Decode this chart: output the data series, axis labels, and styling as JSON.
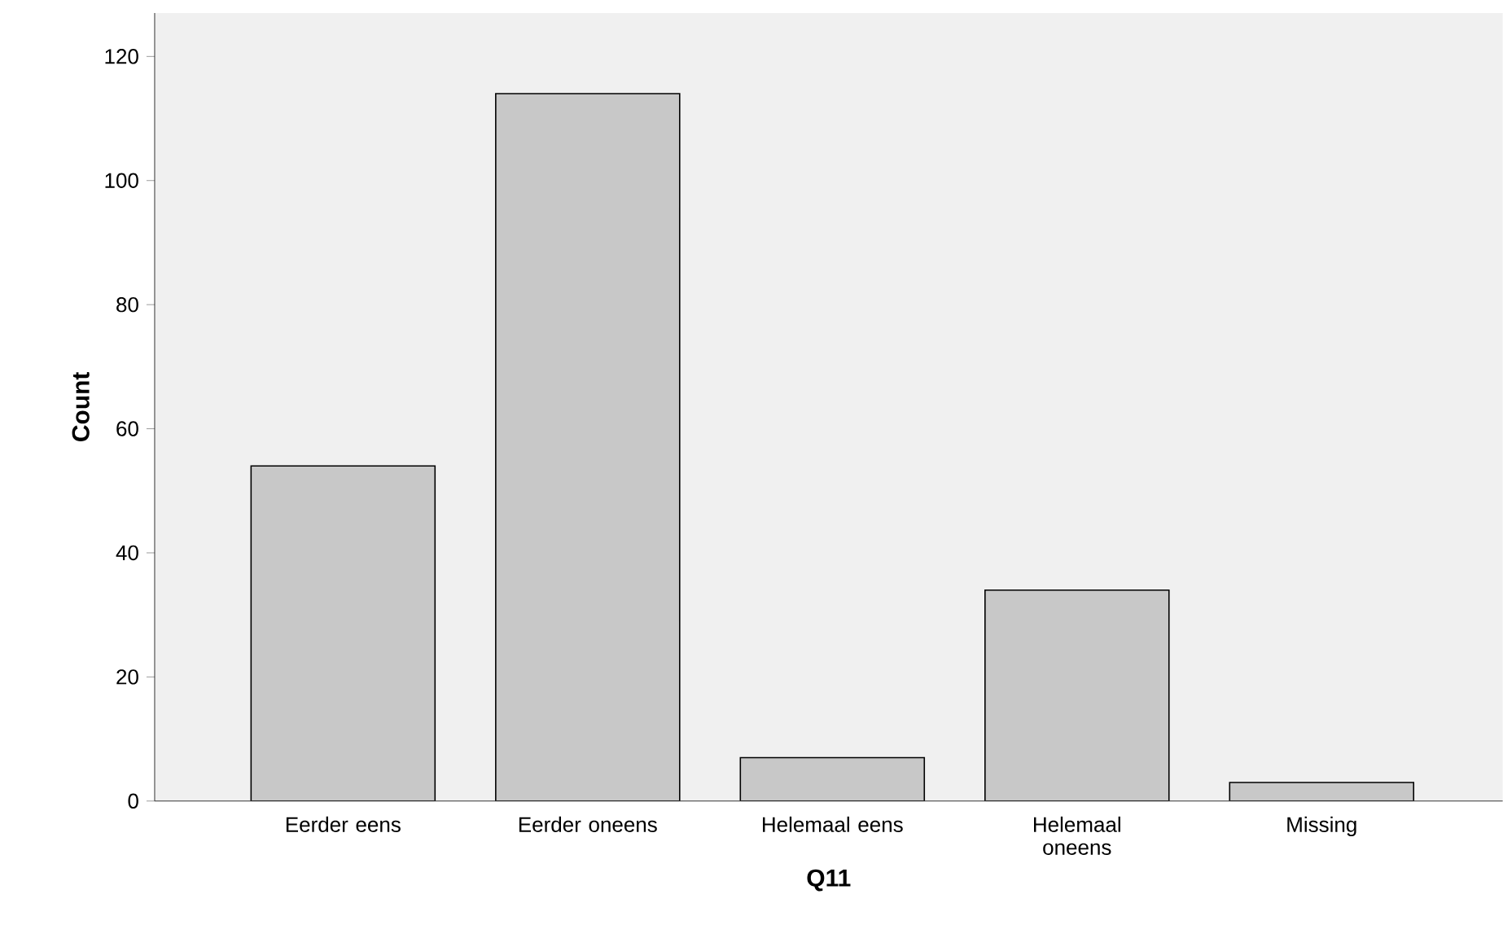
{
  "chart_data": {
    "type": "bar",
    "xlabel": "Q11",
    "ylabel": "Count",
    "categories": [
      "Eerder eens",
      "Eerder oneens",
      "Helemaal eens",
      "Helemaal oneens",
      "Missing"
    ],
    "values": [
      54,
      114,
      7,
      34,
      3
    ],
    "color": "#c8c8c8",
    "ylim": [
      0,
      127
    ],
    "yticks": [
      0,
      20,
      40,
      60,
      80,
      100,
      120
    ],
    "grid": false
  }
}
